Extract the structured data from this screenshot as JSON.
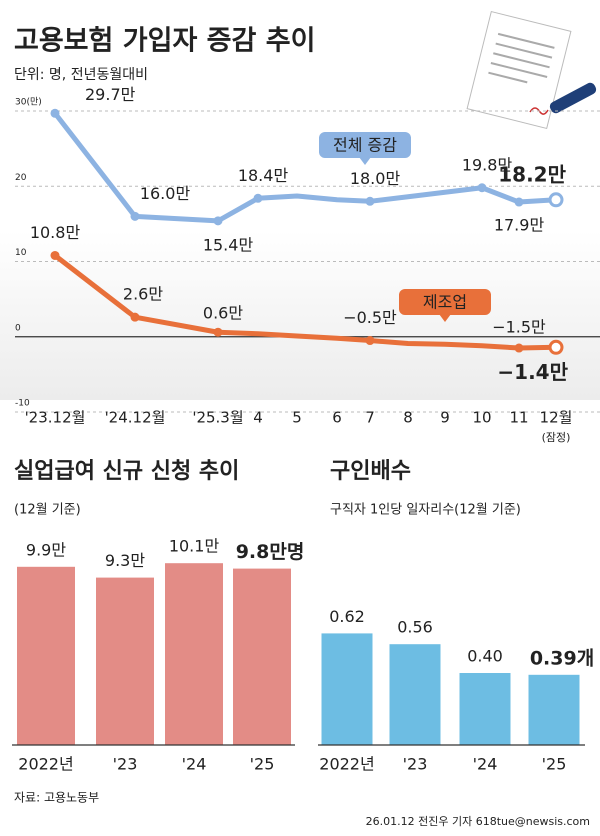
{
  "chart_data": [
    {
      "type": "line",
      "title": "고용보험 가입자 증감 추이",
      "subtitle": "단위: 명, 전년동월대비",
      "categories": [
        "'23.12월",
        "'24.12월",
        "'25.3월",
        "4",
        "5",
        "6",
        "7",
        "8",
        "9",
        "10",
        "11",
        "12월"
      ],
      "annotations": [
        "(잠정)"
      ],
      "series": [
        {
          "name": "전체 증감",
          "color": "#8db3e2",
          "values": [
            29.7,
            16.0,
            15.4,
            18.4,
            18.7,
            18.2,
            18.0,
            18.6,
            19.2,
            19.8,
            17.9,
            18.2
          ],
          "value_labels": [
            "29.7만",
            "16.0만",
            "15.4만",
            "18.4만",
            null,
            null,
            "18.0만",
            null,
            null,
            "19.8만",
            "17.9만",
            "18.2만"
          ]
        },
        {
          "name": "제조업",
          "color": "#e8703a",
          "values": [
            10.8,
            2.6,
            0.6,
            0.4,
            0.1,
            -0.2,
            -0.5,
            -0.9,
            -1.0,
            -1.2,
            -1.5,
            -1.4
          ],
          "value_labels": [
            "10.8만",
            "2.6만",
            "0.6만",
            null,
            null,
            null,
            "−0.5만",
            null,
            null,
            null,
            "−1.5만",
            "−1.4만"
          ]
        }
      ],
      "ylim": [
        -10,
        30
      ],
      "yticks": [
        {
          "value": 30,
          "label": "30(만)"
        },
        20,
        10,
        0,
        -10
      ],
      "grid": true
    },
    {
      "type": "bar",
      "title": "실업급여 신규 신청 추이",
      "subtitle": "(12월 기준)",
      "categories": [
        "2022년",
        "'23",
        "'24",
        "'25"
      ],
      "values": [
        9.9,
        9.3,
        10.1,
        9.8
      ],
      "value_labels": [
        "9.9만",
        "9.3만",
        "10.1만",
        "9.8만명"
      ],
      "color": "#e38c86",
      "ylim": [
        0,
        10
      ]
    },
    {
      "type": "bar",
      "title": "구인배수",
      "subtitle": "구직자 1인당 일자리수(12월 기준)",
      "categories": [
        "2022년",
        "'23",
        "'24",
        "'25"
      ],
      "values": [
        0.62,
        0.56,
        0.4,
        0.39
      ],
      "value_labels": [
        "0.62",
        "0.56",
        "0.40",
        "0.39개"
      ],
      "color": "#6dbde3",
      "ylim": [
        0,
        1
      ]
    }
  ],
  "source": "자료: 고용노동부",
  "credit": "26.01.12 전진우 기자 618tue@newsis.com"
}
